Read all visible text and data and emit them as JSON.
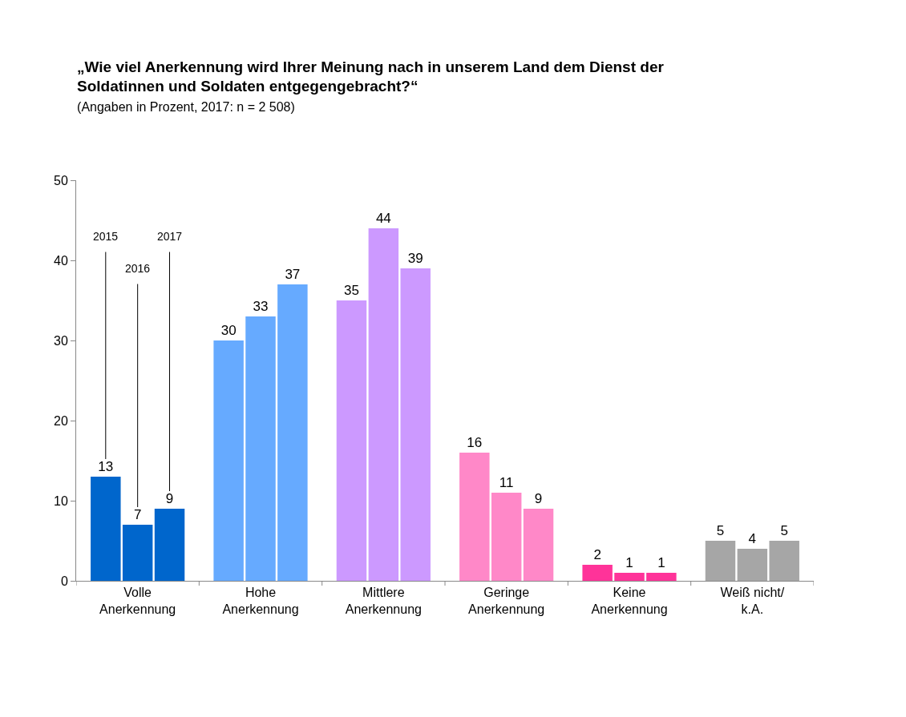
{
  "chart_data": {
    "type": "bar",
    "title": "„Wie viel Anerkennung wird Ihrer Meinung nach in unserem Land dem Dienst der\nSoldatinnen und Soldaten entgegengebracht?“",
    "subtitle": "(Angaben in Prozent, 2017: n = 2 508)",
    "categories": [
      "Volle\nAnerkennung",
      "Hohe\nAnerkennung",
      "Mittlere\nAnerkennung",
      "Geringe\nAnerkennung",
      "Keine\nAnerkennung",
      "Weiß nicht/\nk.A."
    ],
    "series": [
      {
        "name": "2015",
        "colors": [
          "#0066cc",
          "#66aaff",
          "#cc99ff",
          "#ff88c8",
          "#ff3399",
          "#a6a6a6"
        ],
        "values": [
          13,
          30,
          35,
          16,
          2,
          5
        ]
      },
      {
        "name": "2016",
        "colors": [
          "#0066cc",
          "#66aaff",
          "#cc99ff",
          "#ff88c8",
          "#ff3399",
          "#a6a6a6"
        ],
        "values": [
          7,
          33,
          44,
          11,
          1,
          4
        ]
      },
      {
        "name": "2017",
        "colors": [
          "#0066cc",
          "#66aaff",
          "#cc99ff",
          "#ff88c8",
          "#ff3399",
          "#a6a6a6"
        ],
        "values": [
          9,
          37,
          39,
          9,
          1,
          5
        ]
      }
    ],
    "ylim": [
      0,
      50
    ],
    "yticks": [
      0,
      10,
      20,
      30,
      40,
      50
    ],
    "data_labels": true,
    "legend": false
  }
}
